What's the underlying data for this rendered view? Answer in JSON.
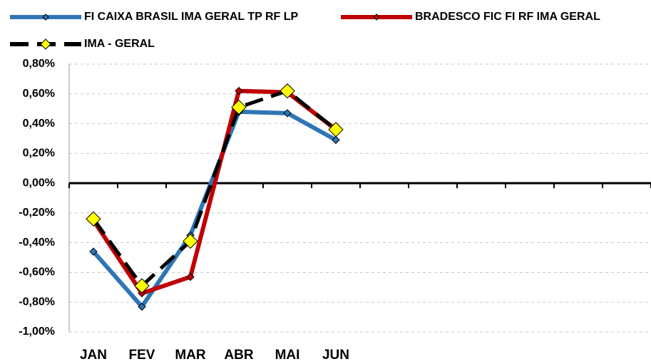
{
  "chart_data": {
    "type": "line",
    "categories": [
      "JAN",
      "FEV",
      "MAR",
      "ABR",
      "MAI",
      "JUN",
      null,
      null,
      null,
      null,
      null,
      null
    ],
    "series": [
      {
        "name": "FI CAIXA BRASIL IMA GERAL TP RF LP",
        "color": "#2e75b6",
        "marker_color": "#2e75b6",
        "values": [
          -0.46,
          -0.83,
          -0.35,
          0.48,
          0.47,
          0.29,
          null,
          null,
          null,
          null,
          null,
          null
        ]
      },
      {
        "name": "BRADESCO FIC FI RF IMA GERAL",
        "color": "#c00000",
        "marker_color": "#c00000",
        "values": [
          -0.25,
          -0.74,
          -0.63,
          0.62,
          0.61,
          0.36,
          null,
          null,
          null,
          null,
          null,
          null
        ]
      },
      {
        "name": "IMA - GERAL",
        "color": "#000000",
        "marker_color": "#ffff00",
        "dashed": true,
        "values": [
          -0.24,
          -0.69,
          -0.39,
          0.51,
          0.62,
          0.36,
          null,
          null,
          null,
          null,
          null,
          null
        ]
      }
    ],
    "ylim": [
      -1.0,
      0.8
    ],
    "yticks": [
      {
        "value": -1.0,
        "label": "-1,00%"
      },
      {
        "value": -0.8,
        "label": "-0,80%"
      },
      {
        "value": -0.6,
        "label": "-0,60%"
      },
      {
        "value": -0.4,
        "label": "-0,40%"
      },
      {
        "value": -0.2,
        "label": "-0,20%"
      },
      {
        "value": 0,
        "label": "0,00%"
      },
      {
        "value": 0.2,
        "label": "0,20%"
      },
      {
        "value": 0.4,
        "label": "0,40%"
      },
      {
        "value": 0.6,
        "label": "0,60%"
      },
      {
        "value": 0.8,
        "label": "0,80%"
      }
    ],
    "grid": true,
    "legend": "top"
  }
}
